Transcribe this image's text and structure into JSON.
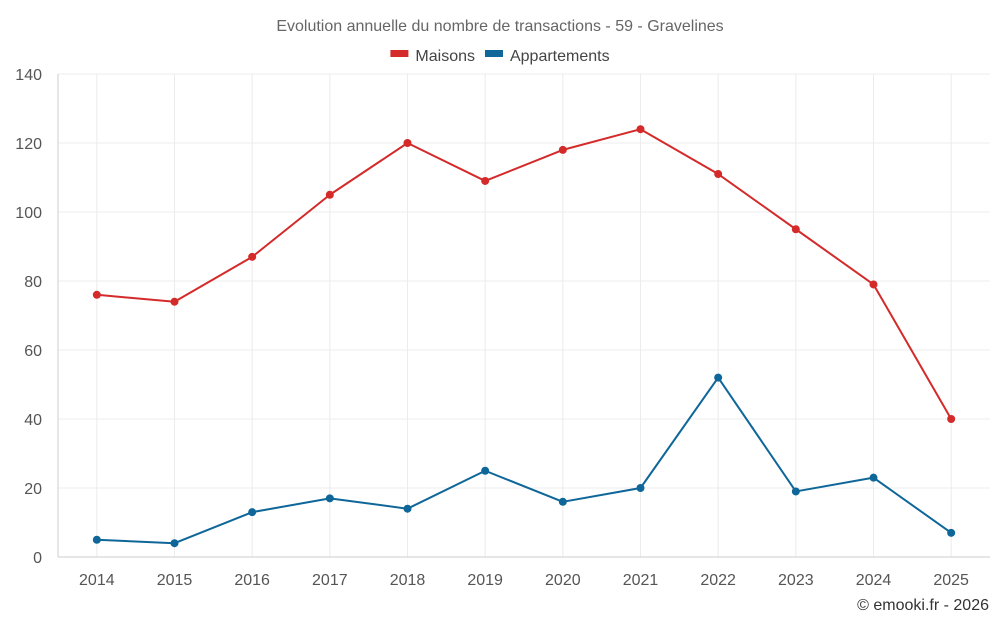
{
  "chart_data": {
    "type": "line",
    "title": "Evolution annuelle du nombre de transactions - 59 - Gravelines",
    "xlabel": "",
    "ylabel": "",
    "categories": [
      "2014",
      "2015",
      "2016",
      "2017",
      "2018",
      "2019",
      "2020",
      "2021",
      "2022",
      "2023",
      "2024",
      "2025"
    ],
    "ylim": [
      0,
      140
    ],
    "yticks": [
      0,
      20,
      40,
      60,
      80,
      100,
      120,
      140
    ],
    "grid": true,
    "legend_position": "top-center",
    "series": [
      {
        "name": "Maisons",
        "color": "#d42a2a",
        "values": [
          76,
          74,
          87,
          105,
          120,
          109,
          118,
          124,
          111,
          95,
          79,
          40
        ]
      },
      {
        "name": "Appartements",
        "color": "#0e6699",
        "values": [
          5,
          4,
          13,
          17,
          14,
          25,
          16,
          20,
          52,
          19,
          23,
          7
        ]
      }
    ]
  },
  "credit": "© emooki.fr - 2026"
}
